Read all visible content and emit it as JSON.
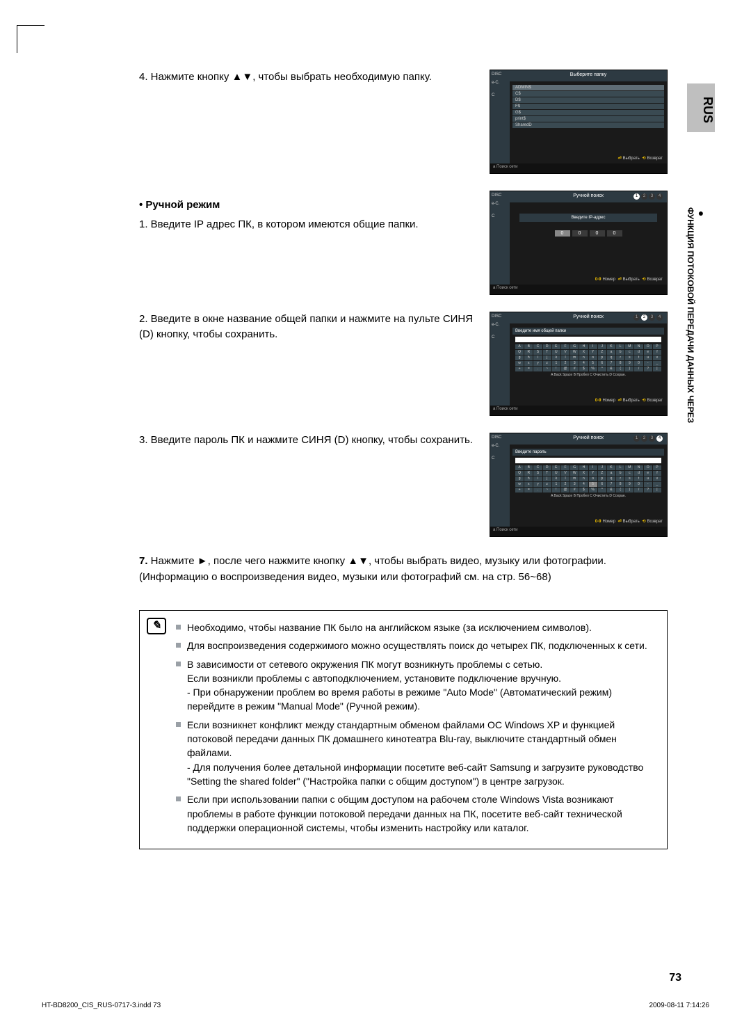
{
  "lang_tab": "RUS",
  "side_label": "ФУНКЦИЯ ПОТОКОВОЙ ПЕРЕДАЧИ ДАННЫХ ЧЕРЕЗ",
  "step4": "4.  Нажмите кнопку ▲▼, чтобы выбрать необходимую папку.",
  "manual_heading": "• Ручной режим",
  "manual1": "1.  Введите IP адрес ПК, в котором имеются общие папки.",
  "manual2": "2.  Введите в окне название общей папки и нажмите на пульте СИНЯ (D) кнопку, чтобы сохранить.",
  "manual3": "3.  Введите пароль ПК и нажмите СИНЯ (D) кнопку, чтобы сохранить.",
  "step7_bold": "7.",
  "step7_text": " Нажмите ►, после чего нажмите кнопку ▲▼, чтобы выбрать видео, музыку или фотографии. (Информацию о воспроизведения видео, музыки или фотографий см. на стр. 56~68)",
  "notes": [
    "Необходимо, чтобы название ПК было на английском языке (за исключением символов).",
    "Для воспроизведения содержимого можно осуществлять поиск до четырех ПК, подключенных к сети.",
    "В зависимости от сетевого окружения ПК могут возникнуть проблемы с сетью.\nЕсли возникли проблемы с автоподключением, установите подключение вручную.\n- При обнаружении проблем во время работы в режиме \"Auto Mode\" (Автоматический режим) перейдите в режим \"Manual Mode\" (Ручной режим).",
    "Если возникнет конфликт между стандартным обменом файлами ОС Windows XP и функцией потоковой передачи данных ПК домашнего кинотеатра Blu-ray, выключите стандартный обмен файлами.\n- Для получения более детальной информации посетите веб-сайт Samsung и загрузите руководство \"Setting the shared folder\" (\"Настройка папки с общим доступом\") в центре загрузок.",
    "Если при использовании папки с общим доступом на рабочем столе Windows Vista возникают проблемы в работе функции потоковой передачи данных на ПК, посетите веб-сайт технической поддержки операционной системы, чтобы изменить настройку или каталог."
  ],
  "page_num": "73",
  "footer_left": "HT-BD8200_CIS_RUS-0717-3.indd   73",
  "footer_right": "2009-08-11   7:14:26",
  "shots": {
    "s1": {
      "title": "Выберите папку",
      "folders": [
        "ADMIN$",
        "C$",
        "D$",
        "F$",
        "G$",
        "print$",
        "SharedD"
      ],
      "footer": "a Поиск сети",
      "btn1": "Выбрать",
      "btn2": "Возврат",
      "sb": [
        "DISC",
        "e-C.",
        "",
        "C"
      ]
    },
    "s2": {
      "title": "Ручной поиск",
      "sub": "Введите IP-адрес",
      "ip": [
        "0",
        "0",
        "0",
        "0"
      ],
      "footer": "a Поиск сети",
      "btn0": "Номер",
      "btn1": "Выбрать",
      "btn2": "Возврат",
      "sb": [
        "DISC",
        "e-C.",
        "",
        "C"
      ]
    },
    "s3": {
      "title": "Ручной поиск",
      "sub": "Введите имя общей папки",
      "footer": "a Поиск сети",
      "btn0": "Номер",
      "btn1": "Выбрать",
      "btn2": "Возврат",
      "actions": "A Back Space  B Пробел  C Очистить  D Сохран.",
      "sb": [
        "DISC",
        "e-C.",
        "",
        "C"
      ]
    },
    "s4": {
      "title": "Ручной поиск",
      "sub": "Введите пароль",
      "footer": "a Поиск сети",
      "btn0": "Номер",
      "btn1": "Выбрать",
      "btn2": "Возврат",
      "actions": "A Back Space  B Пробел  C Очистить  D Сохран.",
      "sb": [
        "DISC",
        "e-C.",
        "",
        "C"
      ]
    }
  }
}
